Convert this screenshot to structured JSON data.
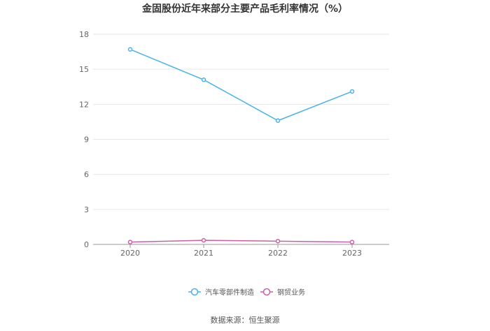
{
  "chart_data": {
    "type": "line",
    "title": "金固股份近年来部分主要产品毛利率情况（%）",
    "categories": [
      "2020",
      "2021",
      "2022",
      "2023"
    ],
    "yticks": [
      "0",
      "3",
      "6",
      "9",
      "12",
      "15",
      "18"
    ],
    "ylim": [
      0,
      18
    ],
    "grid": true,
    "legend_position": "bottom-center",
    "series": [
      {
        "name": "汽车零部件制造",
        "color": "#4ab3e8",
        "values": [
          16.7,
          14.1,
          10.6,
          13.1
        ]
      },
      {
        "name": "钢贸业务",
        "color": "#cc5fa8",
        "values": [
          0.2,
          0.35,
          0.28,
          0.2
        ]
      }
    ],
    "source": "数据来源：恒生聚源"
  }
}
